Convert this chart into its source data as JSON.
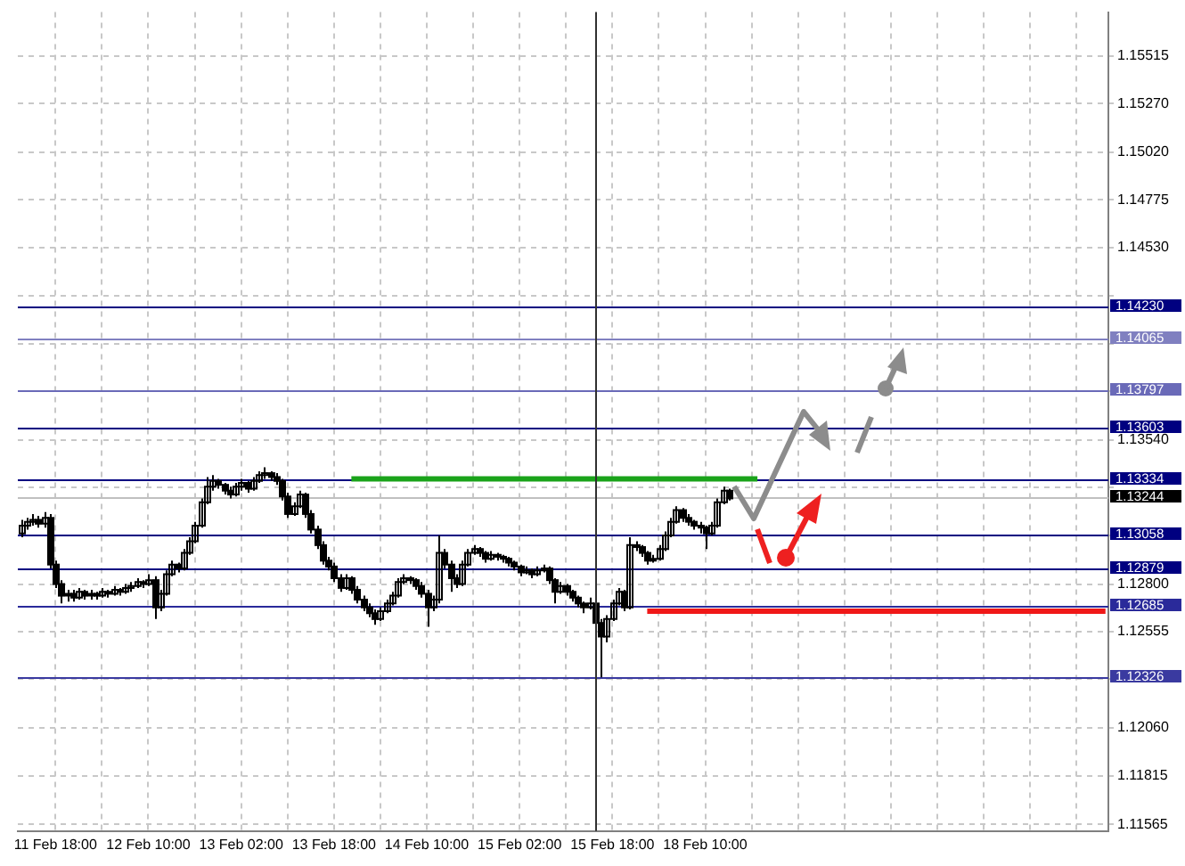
{
  "chart_data": {
    "type": "candlestick",
    "color": "#000000",
    "categories": [
      null,
      null,
      null,
      null,
      null,
      null,
      "11 Feb 18:00",
      null,
      null,
      null,
      null,
      null,
      null,
      null,
      null,
      null,
      null,
      null,
      null,
      null,
      null,
      null,
      "12 Feb 10:00",
      null,
      null,
      null,
      null,
      null,
      null,
      null,
      null,
      null,
      null,
      null,
      null,
      null,
      null,
      null,
      "13 Feb 02:00",
      null,
      null,
      null,
      null,
      null,
      null,
      null,
      null,
      null,
      null,
      null,
      null,
      null,
      null,
      null,
      "13 Feb 18:00",
      null,
      null,
      null,
      null,
      null,
      null,
      null,
      null,
      null,
      null,
      null,
      null,
      null,
      null,
      null,
      "14 Feb 10:00",
      null,
      null,
      null,
      null,
      null,
      null,
      null,
      null,
      null,
      null,
      null,
      null,
      null,
      null,
      null,
      "15 Feb 02:00",
      null,
      null,
      null,
      null,
      null,
      null,
      null,
      null,
      null,
      null,
      null,
      null,
      null,
      null,
      null,
      "15 Feb 18:00",
      null,
      null,
      null,
      null,
      null,
      null,
      null,
      null,
      null,
      null,
      null,
      null,
      null,
      null,
      null,
      "18 Feb 10:00",
      null,
      null,
      null,
      null,
      null,
      null,
      null,
      null,
      null,
      null,
      null,
      null,
      null,
      null,
      null,
      null,
      null,
      null,
      null,
      null,
      null,
      null,
      null,
      null,
      null,
      null,
      null,
      null,
      null,
      null,
      null,
      null,
      null,
      null,
      null,
      null,
      null,
      null,
      null,
      null,
      null,
      null,
      null,
      null,
      null,
      null,
      null,
      null,
      null,
      null,
      null,
      null,
      null,
      null,
      null,
      null,
      null,
      null,
      null,
      null,
      null,
      null,
      null,
      null,
      null,
      null,
      null,
      null,
      null
    ],
    "ohlc": [
      [
        1.1306,
        1.1313,
        1.1304,
        1.131
      ],
      [
        1.131,
        1.1314,
        1.1308,
        1.1312
      ],
      [
        1.1312,
        1.1316,
        1.131,
        1.1313
      ],
      [
        1.1313,
        1.1315,
        1.1309,
        1.1311
      ],
      [
        1.1311,
        1.1317,
        1.1309,
        1.1314
      ],
      [
        1.1314,
        1.1316,
        1.1288,
        1.129
      ],
      [
        1.129,
        1.1292,
        1.1278,
        1.128
      ],
      [
        1.128,
        1.1282,
        1.127,
        1.1274
      ],
      [
        1.1274,
        1.1277,
        1.1271,
        1.1275
      ],
      [
        1.1275,
        1.1277,
        1.1271,
        1.1273
      ],
      [
        1.1273,
        1.1278,
        1.1272,
        1.1276
      ],
      [
        1.1276,
        1.1277,
        1.1272,
        1.1274
      ],
      [
        1.1274,
        1.1277,
        1.1272,
        1.1275
      ],
      [
        1.1275,
        1.1276,
        1.1272,
        1.1274
      ],
      [
        1.1274,
        1.1278,
        1.1273,
        1.1276
      ],
      [
        1.1276,
        1.1277,
        1.1273,
        1.1275
      ],
      [
        1.1275,
        1.1279,
        1.1274,
        1.1277
      ],
      [
        1.1277,
        1.1278,
        1.1274,
        1.1276
      ],
      [
        1.1276,
        1.128,
        1.1275,
        1.1278
      ],
      [
        1.1278,
        1.1281,
        1.1276,
        1.1279
      ],
      [
        1.1279,
        1.1283,
        1.1278,
        1.1281
      ],
      [
        1.1281,
        1.1282,
        1.1278,
        1.128
      ],
      [
        1.128,
        1.1285,
        1.1279,
        1.1282
      ],
      [
        1.1282,
        1.1284,
        1.1262,
        1.1268
      ],
      [
        1.1268,
        1.1277,
        1.1266,
        1.1275
      ],
      [
        1.1275,
        1.1287,
        1.1274,
        1.1285
      ],
      [
        1.1285,
        1.1292,
        1.1284,
        1.129
      ],
      [
        1.129,
        1.1291,
        1.1286,
        1.1288
      ],
      [
        1.1288,
        1.1298,
        1.1287,
        1.1296
      ],
      [
        1.1296,
        1.1304,
        1.1295,
        1.1302
      ],
      [
        1.1302,
        1.1312,
        1.1301,
        1.131
      ],
      [
        1.131,
        1.1324,
        1.1309,
        1.1322
      ],
      [
        1.1322,
        1.1335,
        1.1321,
        1.133
      ],
      [
        1.133,
        1.1336,
        1.1328,
        1.1333
      ],
      [
        1.1333,
        1.1334,
        1.1329,
        1.1331
      ],
      [
        1.1331,
        1.1332,
        1.1326,
        1.1328
      ],
      [
        1.1328,
        1.133,
        1.1324,
        1.1326
      ],
      [
        1.1326,
        1.1332,
        1.1325,
        1.133
      ],
      [
        1.133,
        1.1334,
        1.1328,
        1.1332
      ],
      [
        1.1332,
        1.1333,
        1.1327,
        1.1329
      ],
      [
        1.1329,
        1.1335,
        1.1328,
        1.1333
      ],
      [
        1.1333,
        1.1338,
        1.1332,
        1.1336
      ],
      [
        1.1336,
        1.134,
        1.1334,
        1.1337
      ],
      [
        1.1337,
        1.1338,
        1.1333,
        1.1335
      ],
      [
        1.1335,
        1.1337,
        1.1331,
        1.1333
      ],
      [
        1.1333,
        1.1334,
        1.1323,
        1.1325
      ],
      [
        1.1325,
        1.1327,
        1.1314,
        1.1316
      ],
      [
        1.1316,
        1.1322,
        1.1315,
        1.132
      ],
      [
        1.132,
        1.1328,
        1.1319,
        1.1326
      ],
      [
        1.1326,
        1.1327,
        1.1314,
        1.1316
      ],
      [
        1.1316,
        1.1318,
        1.1306,
        1.1308
      ],
      [
        1.1308,
        1.131,
        1.1298,
        1.13
      ],
      [
        1.13,
        1.1302,
        1.129,
        1.1292
      ],
      [
        1.1292,
        1.1294,
        1.1287,
        1.1289
      ],
      [
        1.1289,
        1.1291,
        1.1281,
        1.1283
      ],
      [
        1.1283,
        1.1285,
        1.1276,
        1.1278
      ],
      [
        1.1278,
        1.1285,
        1.1277,
        1.1283
      ],
      [
        1.1283,
        1.1284,
        1.1275,
        1.1277
      ],
      [
        1.1277,
        1.1279,
        1.127,
        1.1272
      ],
      [
        1.1272,
        1.1274,
        1.1266,
        1.1268
      ],
      [
        1.1268,
        1.127,
        1.1263,
        1.1265
      ],
      [
        1.1265,
        1.1267,
        1.1259,
        1.1262
      ],
      [
        1.1262,
        1.1268,
        1.1261,
        1.1266
      ],
      [
        1.1266,
        1.1272,
        1.1265,
        1.127
      ],
      [
        1.127,
        1.1276,
        1.1269,
        1.1274
      ],
      [
        1.1274,
        1.1283,
        1.1273,
        1.1281
      ],
      [
        1.1281,
        1.1285,
        1.128,
        1.1283
      ],
      [
        1.1283,
        1.1284,
        1.128,
        1.1282
      ],
      [
        1.1282,
        1.1283,
        1.1277,
        1.1279
      ],
      [
        1.1279,
        1.1281,
        1.1273,
        1.1275
      ],
      [
        1.1275,
        1.1277,
        1.1258,
        1.1268
      ],
      [
        1.1268,
        1.1274,
        1.1266,
        1.1272
      ],
      [
        1.1272,
        1.1305,
        1.127,
        1.1296
      ],
      [
        1.1296,
        1.1298,
        1.1288,
        1.129
      ],
      [
        1.129,
        1.1292,
        1.1276,
        1.1283
      ],
      [
        1.1283,
        1.1285,
        1.1278,
        1.128
      ],
      [
        1.128,
        1.1292,
        1.1279,
        1.129
      ],
      [
        1.129,
        1.1298,
        1.1289,
        1.1296
      ],
      [
        1.1296,
        1.13,
        1.1295,
        1.1298
      ],
      [
        1.1298,
        1.1299,
        1.1294,
        1.1296
      ],
      [
        1.1296,
        1.1297,
        1.1291,
        1.1293
      ],
      [
        1.1293,
        1.1297,
        1.1292,
        1.1295
      ],
      [
        1.1295,
        1.1296,
        1.1292,
        1.1294
      ],
      [
        1.1294,
        1.1295,
        1.1291,
        1.1293
      ],
      [
        1.1293,
        1.1294,
        1.1289,
        1.1291
      ],
      [
        1.1291,
        1.1292,
        1.1287,
        1.1289
      ],
      [
        1.1289,
        1.129,
        1.1284,
        1.1286
      ],
      [
        1.1286,
        1.1289,
        1.1285,
        1.1287
      ],
      [
        1.1287,
        1.1288,
        1.1283,
        1.1285
      ],
      [
        1.1285,
        1.1289,
        1.1284,
        1.1287
      ],
      [
        1.1287,
        1.129,
        1.1286,
        1.1288
      ],
      [
        1.1288,
        1.1289,
        1.128,
        1.1282
      ],
      [
        1.1282,
        1.1283,
        1.127,
        1.1276
      ],
      [
        1.1276,
        1.1281,
        1.1275,
        1.1279
      ],
      [
        1.1279,
        1.128,
        1.1274,
        1.1276
      ],
      [
        1.1276,
        1.1277,
        1.1271,
        1.1273
      ],
      [
        1.1273,
        1.1274,
        1.1268,
        1.127
      ],
      [
        1.127,
        1.1271,
        1.1265,
        1.1268
      ],
      [
        1.1268,
        1.1273,
        1.1267,
        1.127
      ],
      [
        1.127,
        1.1272,
        1.1258,
        1.126
      ],
      [
        1.126,
        1.1262,
        1.1232,
        1.1253
      ],
      [
        1.1253,
        1.1264,
        1.125,
        1.1262
      ],
      [
        1.1262,
        1.1272,
        1.1261,
        1.127
      ],
      [
        1.127,
        1.1278,
        1.1269,
        1.1276
      ],
      [
        1.1276,
        1.1277,
        1.1266,
        1.1268
      ],
      [
        1.1268,
        1.1304,
        1.1267,
        1.13
      ],
      [
        1.13,
        1.1302,
        1.1297,
        1.1299
      ],
      [
        1.1299,
        1.13,
        1.1294,
        1.1296
      ],
      [
        1.1296,
        1.1297,
        1.129,
        1.1292
      ],
      [
        1.1292,
        1.1295,
        1.1291,
        1.1293
      ],
      [
        1.1293,
        1.13,
        1.1292,
        1.1298
      ],
      [
        1.1298,
        1.1307,
        1.1297,
        1.1305
      ],
      [
        1.1305,
        1.1314,
        1.1304,
        1.1312
      ],
      [
        1.1312,
        1.132,
        1.1311,
        1.1318
      ],
      [
        1.1318,
        1.1319,
        1.1312,
        1.1314
      ],
      [
        1.1314,
        1.1316,
        1.131,
        1.1312
      ],
      [
        1.1312,
        1.1313,
        1.1308,
        1.131
      ],
      [
        1.131,
        1.1312,
        1.1306,
        1.1309
      ],
      [
        1.1309,
        1.131,
        1.1298,
        1.1306
      ],
      [
        1.1306,
        1.1312,
        1.1305,
        1.131
      ],
      [
        1.131,
        1.1324,
        1.1309,
        1.1322
      ],
      [
        1.1322,
        1.133,
        1.1321,
        1.1328
      ],
      [
        1.1328,
        1.1329,
        1.1323,
        1.1324
      ],
      null,
      null,
      null,
      null,
      null,
      null,
      null,
      null,
      null,
      null,
      null,
      null,
      null,
      null,
      null,
      null,
      null,
      null,
      null,
      null,
      null,
      null,
      null,
      null,
      null,
      null,
      null,
      null,
      null,
      null,
      null,
      null,
      null,
      null,
      null,
      null,
      null,
      null,
      null,
      null,
      null,
      null,
      null,
      null,
      null,
      null,
      null,
      null,
      null,
      null,
      null,
      null,
      null,
      null,
      null,
      null,
      null,
      null,
      null,
      null,
      null,
      null,
      null,
      null,
      null
    ],
    "series": [
      {
        "type": "line",
        "color": "#1aa31a",
        "values": [
          null,
          null,
          null,
          null,
          null,
          null,
          null,
          null,
          null,
          null,
          null,
          null,
          null,
          null,
          null,
          null,
          null,
          null,
          null,
          null,
          null,
          null,
          null,
          null,
          null,
          null,
          null,
          null,
          null,
          null,
          null,
          null,
          null,
          null,
          null,
          null,
          null,
          null,
          null,
          null,
          null,
          null,
          null,
          null,
          null,
          null,
          null,
          null,
          null,
          null,
          null,
          null,
          null,
          null,
          null,
          null,
          null,
          1.1334,
          1.1334,
          1.1334,
          1.1334,
          1.1334,
          1.1334,
          1.1334,
          1.1334,
          1.1334,
          1.1334,
          1.1334,
          1.1334,
          1.1334,
          1.1334,
          1.1334,
          1.1334,
          1.1334,
          1.1334,
          1.1334,
          1.1334,
          1.1334,
          1.1334,
          1.1334,
          1.1334,
          1.1334,
          1.1334,
          1.1334,
          1.1334,
          1.1334,
          1.1334,
          1.1334,
          1.1334,
          1.1334,
          1.1334,
          1.1334,
          1.1334,
          1.1334,
          1.1334,
          1.1334,
          1.1334,
          1.1334,
          1.1334,
          1.1334,
          1.1334,
          1.1334,
          1.1334,
          1.1334,
          1.1334,
          1.1334,
          1.1334,
          1.1334,
          1.1334,
          1.1334,
          1.1334,
          1.1334,
          1.1334,
          1.1334,
          1.1334,
          1.1334,
          1.1334,
          1.1334,
          1.1334,
          1.1334,
          1.1334,
          1.1334,
          1.1334,
          1.1334,
          1.1334,
          1.1334,
          1.1334,
          1.1334,
          null,
          null,
          null,
          null,
          null,
          null,
          null,
          null,
          null,
          null,
          null,
          null,
          null,
          null,
          null,
          null,
          null,
          null,
          null,
          null,
          null,
          null,
          null,
          null,
          null,
          null,
          null,
          null,
          null,
          null,
          null,
          null,
          null,
          null,
          null,
          null,
          null,
          null,
          null,
          null,
          null,
          null,
          null,
          null,
          null,
          null,
          null,
          null,
          null,
          null,
          null,
          null,
          null,
          null,
          null,
          null,
          null,
          null,
          null,
          null
        ]
      },
      {
        "type": "line",
        "color": "#f01818",
        "values": [
          null,
          null,
          null,
          null,
          null,
          null,
          null,
          null,
          null,
          null,
          null,
          null,
          null,
          null,
          null,
          null,
          null,
          null,
          null,
          null,
          null,
          null,
          null,
          null,
          null,
          null,
          null,
          null,
          null,
          null,
          null,
          null,
          null,
          null,
          null,
          null,
          null,
          null,
          null,
          null,
          null,
          null,
          null,
          null,
          null,
          null,
          null,
          null,
          null,
          null,
          null,
          null,
          null,
          null,
          null,
          null,
          null,
          null,
          null,
          null,
          null,
          null,
          null,
          null,
          null,
          null,
          null,
          null,
          null,
          null,
          null,
          null,
          null,
          null,
          null,
          null,
          null,
          null,
          null,
          null,
          null,
          null,
          null,
          null,
          null,
          null,
          null,
          null,
          null,
          null,
          null,
          null,
          null,
          null,
          null,
          null,
          null,
          null,
          null,
          null,
          null,
          null,
          null,
          null,
          null,
          null,
          null,
          null,
          1.1266,
          1.1266,
          1.1266,
          1.1266,
          1.1266,
          1.1266,
          1.1266,
          1.1266,
          1.1266,
          1.1266,
          1.1266,
          1.1266,
          1.1266,
          1.1266,
          1.1266,
          1.1266,
          1.1266,
          1.1266,
          1.1266,
          1.1266,
          1.1266,
          1.1266,
          1.1266,
          1.1266,
          1.1266,
          1.1266,
          1.1266,
          1.1266,
          1.1266,
          1.1266,
          1.1266,
          1.1266,
          1.1266,
          1.1266,
          1.1266,
          1.1266,
          1.1266,
          1.1266,
          1.1266,
          1.1266,
          1.1266,
          1.1266,
          1.1266,
          1.1266,
          1.1266,
          1.1266,
          1.1266,
          1.1266,
          1.1266,
          1.1266,
          1.1266,
          1.1266,
          1.1266,
          1.1266,
          1.1266,
          1.1266,
          1.1266,
          1.1266,
          1.1266,
          1.1266,
          1.1266,
          1.1266,
          1.1266,
          1.1266,
          1.1266,
          1.1266,
          1.1266,
          1.1266,
          1.1266,
          1.1266,
          1.1266,
          1.1266,
          1.1266,
          1.1266,
          1.1266,
          1.1266,
          1.1266,
          1.1266,
          1.1266,
          1.1266
        ]
      }
    ],
    "ylim": [
      1.1153,
      1.1574
    ],
    "yticks": [
      {
        "value": 1.15515,
        "label": "1.15515"
      },
      {
        "value": 1.1527,
        "label": "1.15270"
      },
      {
        "value": 1.1502,
        "label": "1.15020"
      },
      {
        "value": 1.14775,
        "label": "1.14775"
      },
      {
        "value": 1.1453,
        "label": "1.14530"
      },
      {
        "value": 1.1428,
        "label": null
      },
      {
        "value": 1.14035,
        "label": null
      },
      {
        "value": 1.1379,
        "label": null
      },
      {
        "value": 1.1354,
        "label": "1.13540"
      },
      {
        "value": 1.13295,
        "label": null
      },
      {
        "value": 1.1305,
        "label": null
      },
      {
        "value": 1.128,
        "label": "1.12800"
      },
      {
        "value": 1.12555,
        "label": "1.12555"
      },
      {
        "value": 1.1231,
        "label": null
      },
      {
        "value": 1.1206,
        "label": "1.12060"
      },
      {
        "value": 1.11815,
        "label": "1.11815"
      },
      {
        "value": 1.11565,
        "label": "1.11565"
      }
    ],
    "ref_lines": [
      {
        "axis": "y",
        "value": 1.1423,
        "label": "1.14230",
        "color": "#000080"
      },
      {
        "axis": "y",
        "value": 1.14065,
        "label": "1.14065",
        "color": "#8080c0"
      },
      {
        "axis": "y",
        "value": 1.13797,
        "label": "1.13797",
        "color": "#6a6ab8"
      },
      {
        "axis": "y",
        "value": 1.13603,
        "label": "1.13603",
        "color": "#000080"
      },
      {
        "axis": "y",
        "value": 1.13334,
        "label": "1.13334",
        "color": "#000080"
      },
      {
        "axis": "y",
        "value": 1.13244,
        "label": "1.13244",
        "color": "#c0c0c0"
      },
      {
        "axis": "y",
        "value": 1.13058,
        "label": "1.13058",
        "color": "#000080"
      },
      {
        "axis": "y",
        "value": 1.12879,
        "label": "1.12879",
        "color": "#000080"
      },
      {
        "axis": "y",
        "value": 1.12685,
        "label": "1.12685",
        "color": "#2a2a9a"
      },
      {
        "axis": "y",
        "value": 1.12326,
        "label": "1.12326",
        "color": "#3a3aa0"
      }
    ],
    "grid": true
  }
}
